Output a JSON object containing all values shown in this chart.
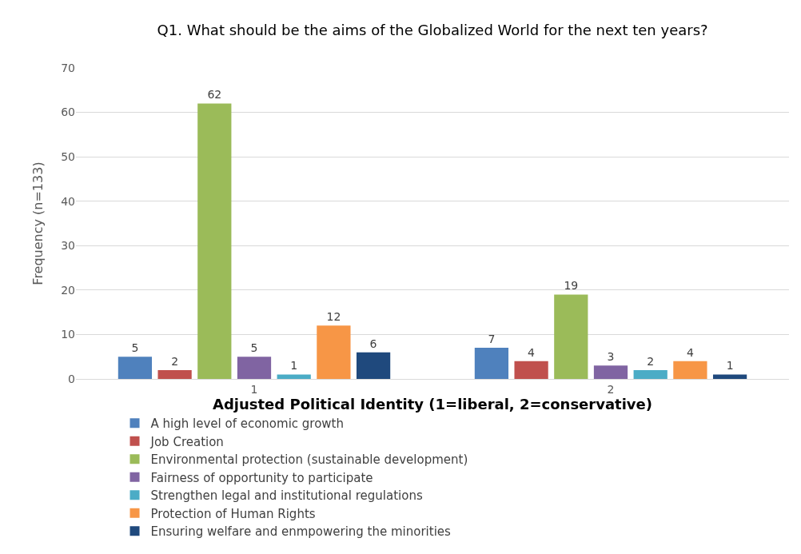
{
  "chart_data": {
    "type": "bar",
    "title": "Q1. What should be the aims of the Globalized World for the next ten years?",
    "xlabel": "Adjusted Political Identity (1=liberal, 2=conservative)",
    "ylabel": "Frequency (n=133)",
    "categories": [
      "1",
      "2"
    ],
    "series": [
      {
        "name": "A high level of economic growth",
        "color": "#4f81bd",
        "values": [
          5,
          7
        ]
      },
      {
        "name": "Job Creation",
        "color": "#c0504d",
        "values": [
          2,
          4
        ]
      },
      {
        "name": "Environmental protection (sustainable development)",
        "color": "#9bbb59",
        "values": [
          62,
          19
        ]
      },
      {
        "name": "Fairness of opportunity to participate",
        "color": "#8064a2",
        "values": [
          5,
          3
        ]
      },
      {
        "name": "Strengthen legal and institutional regulations",
        "color": "#4bacc6",
        "values": [
          1,
          2
        ]
      },
      {
        "name": "Protection of Human Rights",
        "color": "#f79646",
        "values": [
          12,
          4
        ]
      },
      {
        "name": "Ensuring welfare and enmpowering the minorities",
        "color": "#1f497d",
        "values": [
          6,
          1
        ]
      }
    ],
    "ylim": [
      0,
      70
    ],
    "yticks": [
      0,
      10,
      20,
      30,
      40,
      50,
      60,
      70
    ],
    "grid": "y",
    "legend": "bottom",
    "data_labels": true
  }
}
